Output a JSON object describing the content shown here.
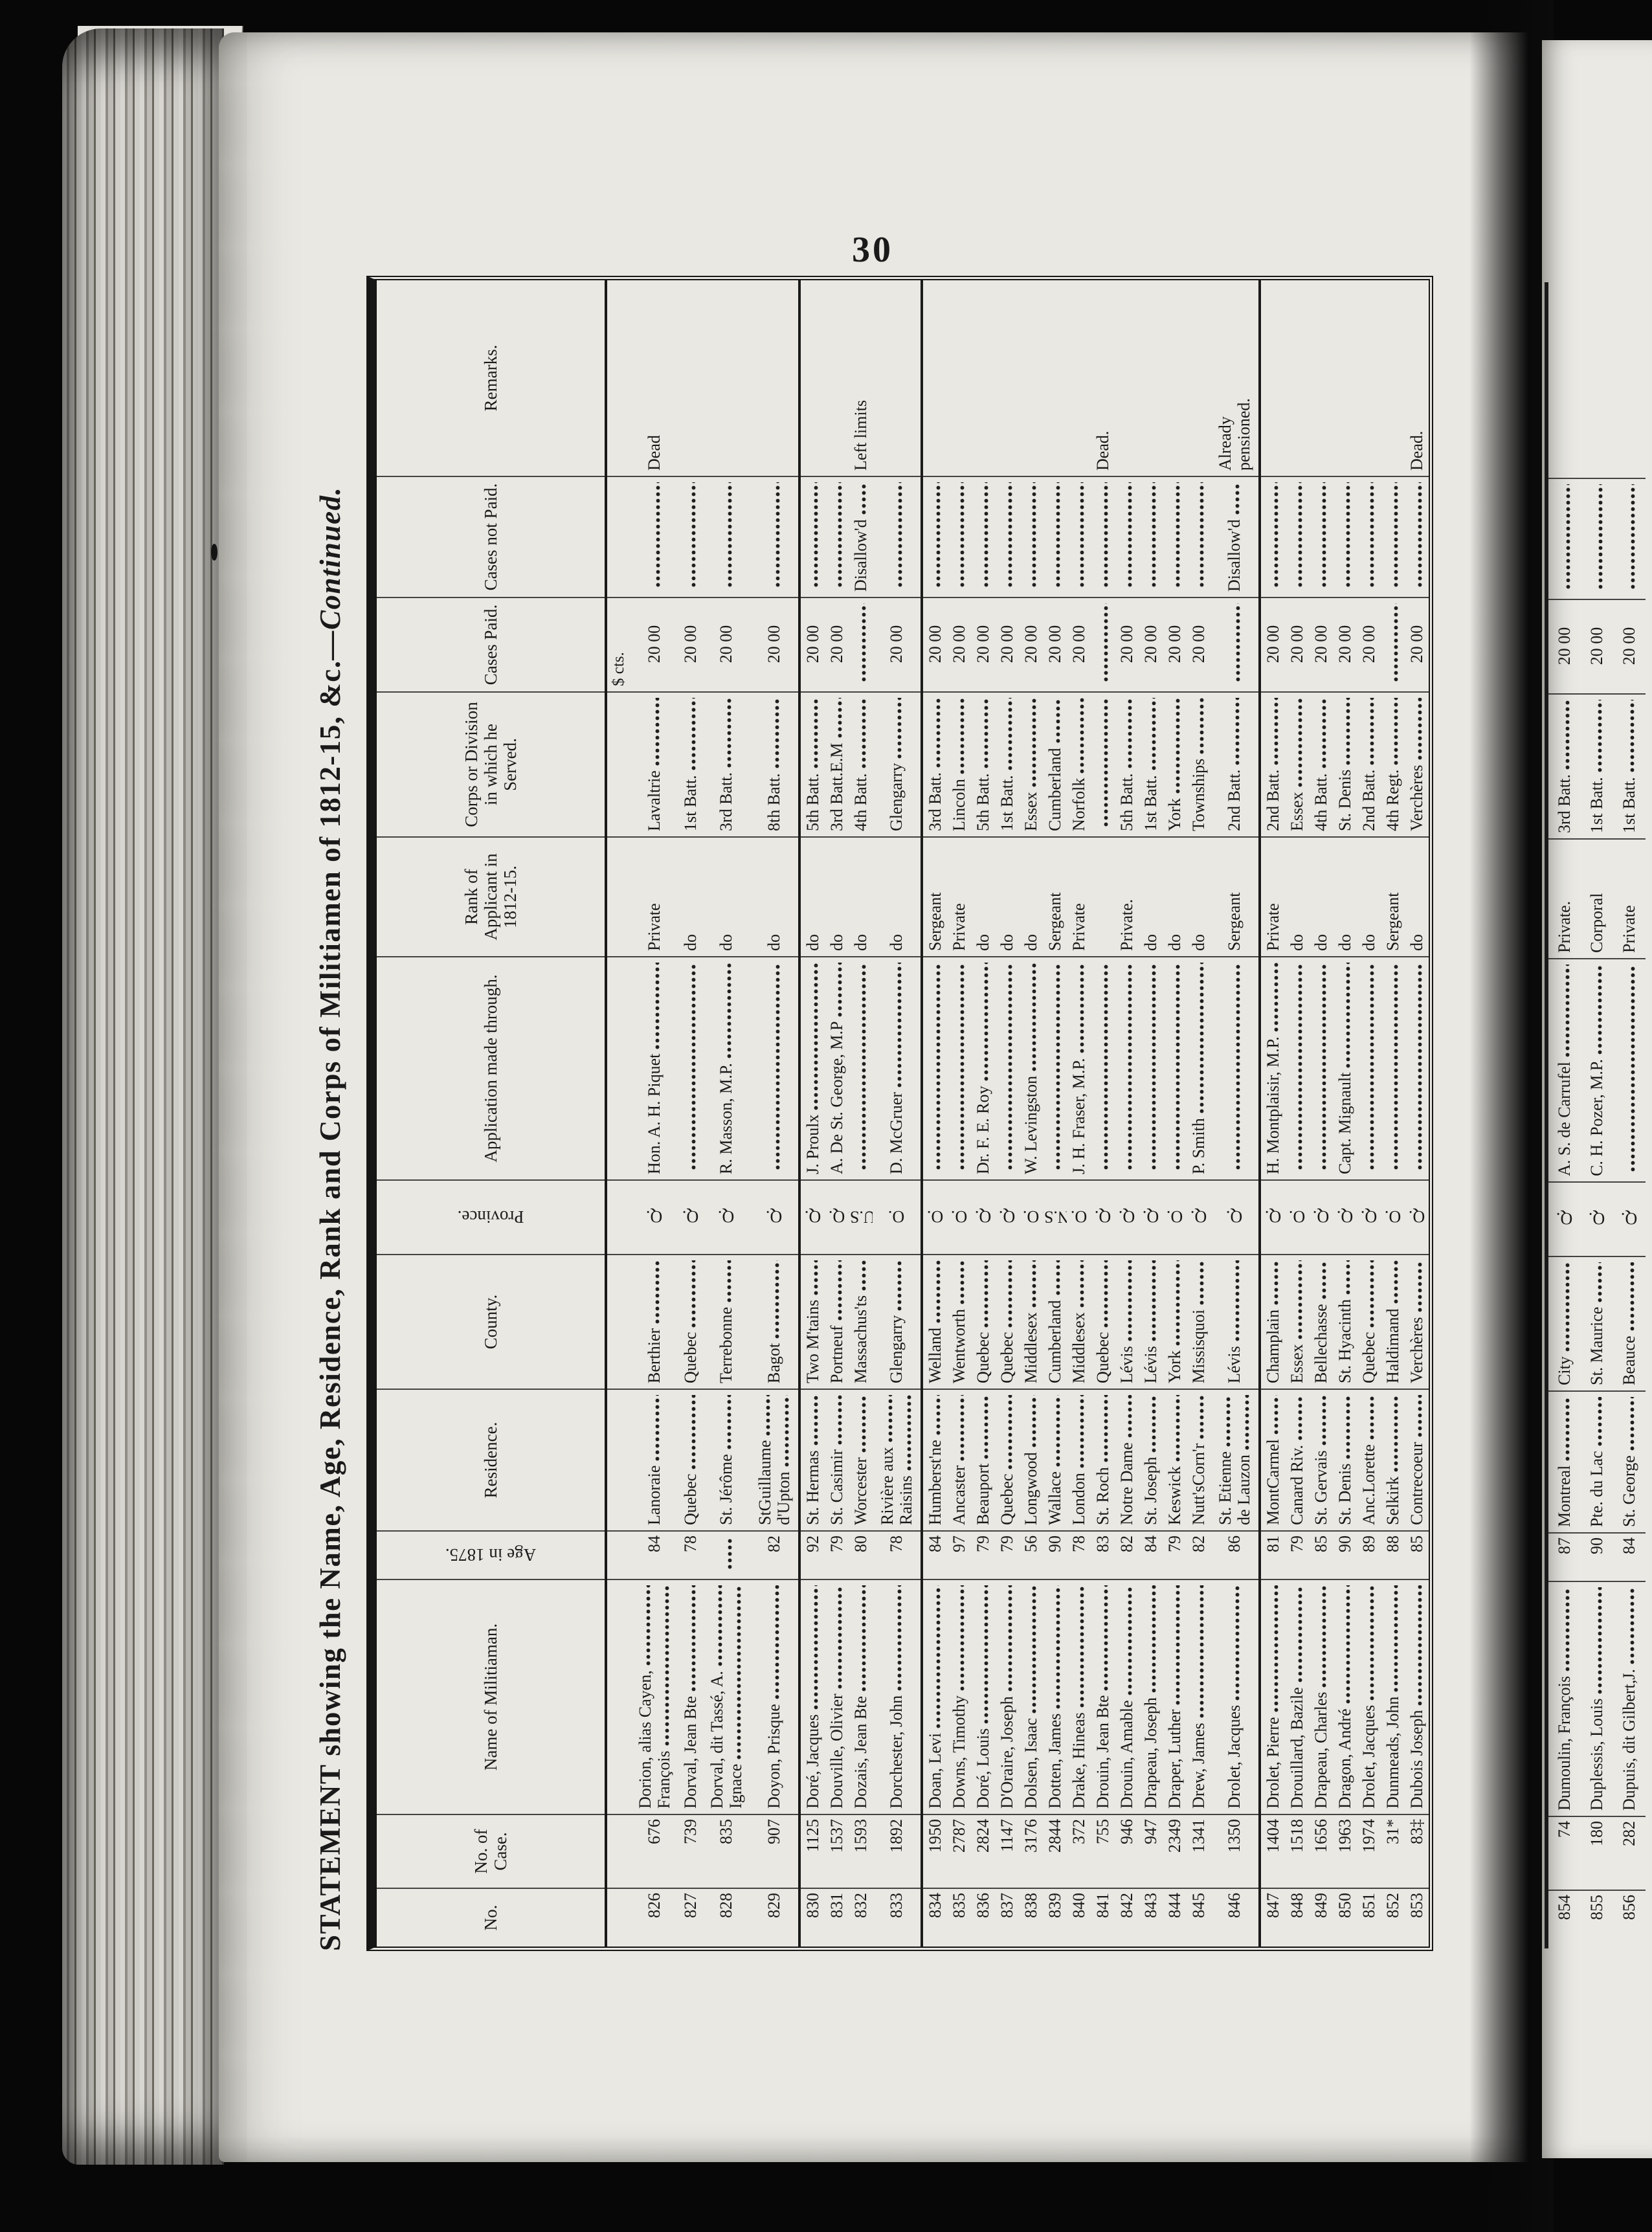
{
  "page": {
    "number": "30",
    "title_main": "STATEMENT showing the Name, Age, Residence, Rank and Corps of Militiamen of 1812-15, &c.",
    "title_continued": "—Continued."
  },
  "table": {
    "headers": {
      "no": "No.",
      "case": "No. of Case.",
      "name": "Name of Militiaman.",
      "age": "Age in 1875.",
      "residence": "Residence.",
      "county": "County.",
      "province": "Province.",
      "application": "Application made through.",
      "rank": "Rank of Applicant in 1812-15.",
      "corps": "Corps or Division in which he Served.",
      "paid": "Cases Paid.",
      "not_paid": "Cases not Paid.",
      "remarks": "Remarks.",
      "paid_units": "$  cts."
    },
    "records": [
      {
        "no": "826",
        "case": "676",
        "name": "Dorion, alias Cayen,",
        "name2": "François",
        "age": "84",
        "residence": "Lanoraie",
        "county": "Berthier",
        "province": "Q.",
        "application": "Hon. A. H. Piquet",
        "rank": "Private",
        "corps": "Lavaltrie",
        "paid": "20 00",
        "not_paid": "",
        "remarks": "Dead"
      },
      {
        "no": "827",
        "case": "739",
        "name": "Dorval, Jean Bte",
        "age": "78",
        "residence": "Quebec",
        "county": "Quebec",
        "province": "Q.",
        "application": "",
        "rank": "do",
        "corps": "1st Batt.",
        "paid": "20 00",
        "not_paid": "",
        "remarks": ""
      },
      {
        "no": "828",
        "case": "835",
        "name": "Dorval, dit Tassé, A.",
        "name2": "Ignace",
        "age": "",
        "residence": "St. Jérôme",
        "county": "Terrebonne",
        "province": "Q.",
        "application": "R. Masson, M.P.",
        "rank": "do",
        "corps": "3rd Batt.",
        "paid": "20 00",
        "not_paid": "",
        "remarks": ""
      },
      {
        "no": "829",
        "case": "907",
        "name": "Doyon, Prisque",
        "age": "82",
        "residence": "StGuillaume",
        "residence2": "d'Upton",
        "county": "Bagot",
        "province": "Q.",
        "application": "",
        "rank": "do",
        "corps": "8th Batt.",
        "paid": "20 00",
        "not_paid": "",
        "remarks": "",
        "rule_after": true
      },
      {
        "no": "830",
        "case": "1125",
        "name": "Doré, Jacques",
        "age": "92",
        "residence": "St. Hermas",
        "county": "Two M'tains",
        "province": "Q.",
        "application": "J. Proulx",
        "rank": "do",
        "corps": "5th Batt.",
        "paid": "20 00",
        "not_paid": "",
        "remarks": ""
      },
      {
        "no": "831",
        "case": "1537",
        "name": "Douville, Olivier",
        "age": "79",
        "residence": "St. Casimir",
        "county": "Portneuf",
        "province": "Q.",
        "application": "A. De St. George, M.P",
        "rank": "do",
        "corps": "3rd Batt.E.M",
        "paid": "20 00",
        "not_paid": "",
        "remarks": ""
      },
      {
        "no": "832",
        "case": "1593",
        "name": "Dozais, Jean Bte",
        "age": "80",
        "residence": "Worcester",
        "county": "Massachus'ts",
        "province": "U.S.",
        "application": "",
        "rank": "do",
        "corps": "4th Batt.",
        "paid": "",
        "not_paid": "Disallow'd",
        "remarks": "Left limits"
      },
      {
        "no": "833",
        "case": "1892",
        "name": "Dorchester, John",
        "age": "78",
        "residence": "Rivière aux",
        "residence2": "Raisins",
        "county": "Glengarry",
        "province": "O.",
        "application": "D. McGruer",
        "rank": "do",
        "corps": "Glengarry",
        "paid": "20 00",
        "not_paid": "",
        "remarks": "",
        "rule_after": true
      },
      {
        "no": "834",
        "case": "1950",
        "name": "Doan, Levi",
        "age": "84",
        "residence": "Humberst'ne",
        "county": "Welland",
        "province": "O.",
        "application": "",
        "rank": "Sergeant",
        "corps": "3rd Batt.",
        "paid": "20 00",
        "not_paid": "",
        "remarks": ""
      },
      {
        "no": "835",
        "case": "2787",
        "name": "Downs, Timothy",
        "age": "97",
        "residence": "Ancaster",
        "county": "Wentworth",
        "province": "O.",
        "application": "",
        "rank": "Private",
        "corps": "Lincoln",
        "paid": "20 00",
        "not_paid": "",
        "remarks": ""
      },
      {
        "no": "836",
        "case": "2824",
        "name": "Doré, Louis",
        "age": "79",
        "residence": "Beauport",
        "county": "Quebec",
        "province": "Q.",
        "application": "Dr. F. E. Roy",
        "rank": "do",
        "corps": "5th Batt.",
        "paid": "20 00",
        "not_paid": "",
        "remarks": ""
      },
      {
        "no": "837",
        "case": "1147",
        "name": "D'Oraire, Joseph",
        "age": "79",
        "residence": "Quebec",
        "county": "Quebec",
        "province": "Q.",
        "application": "",
        "rank": "do",
        "corps": "1st Batt.",
        "paid": "20 00",
        "not_paid": "",
        "remarks": ""
      },
      {
        "no": "838",
        "case": "3176",
        "name": "Dolsen, Isaac",
        "age": "56",
        "residence": "Longwood",
        "county": "Middlesex",
        "province": "O.",
        "application": "W. Levingston",
        "rank": "do",
        "corps": "Essex",
        "paid": "20 00",
        "not_paid": "",
        "remarks": ""
      },
      {
        "no": "839",
        "case": "2844",
        "name": "Dotten, James",
        "age": "90",
        "residence": "Wallace",
        "county": "Cumberland",
        "province": "N.S.",
        "application": "",
        "rank": "Sergeant",
        "corps": "Cumberland",
        "paid": "20 00",
        "not_paid": "",
        "remarks": ""
      },
      {
        "no": "840",
        "case": "372",
        "name": "Drake, Hineas",
        "age": "78",
        "residence": "London",
        "county": "Middlesex",
        "province": "O.",
        "application": "J. H. Fraser, M.P.",
        "rank": "Private",
        "corps": "Norfolk",
        "paid": "20 00",
        "not_paid": "",
        "remarks": ""
      },
      {
        "no": "841",
        "case": "755",
        "name": "Drouin, Jean Bte",
        "age": "83",
        "residence": "St. Roch",
        "county": "Quebec",
        "province": "Q.",
        "application": "",
        "rank": "",
        "corps": "",
        "paid": "",
        "not_paid": "",
        "remarks": "Dead."
      },
      {
        "no": "842",
        "case": "946",
        "name": "Drouin, Amable",
        "age": "82",
        "residence": "Notre Dame",
        "county": "Lévis",
        "province": "Q.",
        "application": "",
        "rank": "Private.",
        "corps": "5th Batt.",
        "paid": "20 00",
        "not_paid": "",
        "remarks": ""
      },
      {
        "no": "843",
        "case": "947",
        "name": "Drapeau, Joseph",
        "age": "84",
        "residence": "St. Joseph",
        "county": "Lévis",
        "province": "Q.",
        "application": "",
        "rank": "do",
        "corps": "1st Batt.",
        "paid": "20 00",
        "not_paid": "",
        "remarks": ""
      },
      {
        "no": "844",
        "case": "2349",
        "name": "Draper, Luther",
        "age": "79",
        "residence": "Keswick",
        "county": "York",
        "province": "O.",
        "application": "",
        "rank": "do",
        "corps": "York",
        "paid": "20 00",
        "not_paid": "",
        "remarks": ""
      },
      {
        "no": "845",
        "case": "1341",
        "name": "Drew, James",
        "age": "82",
        "residence": "Nutt'sCorn'r",
        "county": "Missisquoi",
        "province": "Q.",
        "application": "P. Smith",
        "rank": "do",
        "corps": "Townships",
        "paid": "20 00",
        "not_paid": "",
        "remarks": ""
      },
      {
        "no": "846",
        "case": "1350",
        "name": "Drolet, Jacques",
        "age": "86",
        "residence": "St. Etienne",
        "residence2": "de Lauzon",
        "county": "Lévis",
        "province": "Q.",
        "application": "",
        "rank": "Sergeant",
        "corps": "2nd Batt.",
        "paid": "",
        "not_paid": "Disallow'd",
        "remarks": "Already",
        "remarks2": "pensioned.",
        "rule_after": true
      },
      {
        "no": "847",
        "case": "1404",
        "name": "Drolet, Pierre",
        "age": "81",
        "residence": "MontCarmel",
        "county": "Champlain",
        "province": "Q.",
        "application": "H. Montplaisir, M.P.",
        "rank": "Private",
        "corps": "2nd Batt.",
        "paid": "20 00",
        "not_paid": "",
        "remarks": ""
      },
      {
        "no": "848",
        "case": "1518",
        "name": "Drouillard, Bazile",
        "age": "79",
        "residence": "Canard Riv.",
        "county": "Essex",
        "province": "O.",
        "application": "",
        "rank": "do",
        "corps": "Essex",
        "paid": "20 00",
        "not_paid": "",
        "remarks": ""
      },
      {
        "no": "849",
        "case": "1656",
        "name": "Drapeau, Charles",
        "age": "85",
        "residence": "St. Gervais",
        "county": "Bellechasse",
        "province": "Q.",
        "application": "",
        "rank": "do",
        "corps": "4th Batt.",
        "paid": "20 00",
        "not_paid": "",
        "remarks": ""
      },
      {
        "no": "850",
        "case": "1963",
        "name": "Dragon, André",
        "age": "90",
        "residence": "St. Denis",
        "county": "St. Hyacinth",
        "province": "Q.",
        "application": "Capt. Mignault",
        "rank": "do",
        "corps": "St. Denis",
        "paid": "20 00",
        "not_paid": "",
        "remarks": ""
      },
      {
        "no": "851",
        "case": "1974",
        "name": "Drolet, Jacques",
        "age": "89",
        "residence": "Anc.Lorette",
        "county": "Quebec",
        "province": "Q.",
        "application": "",
        "rank": "do",
        "corps": "2nd Batt.",
        "paid": "20 00",
        "not_paid": "",
        "remarks": ""
      },
      {
        "no": "852",
        "case": "31*",
        "name": "Dunmeads, John",
        "age": "88",
        "residence": "Selkirk",
        "county": "Haldimand",
        "province": "O.",
        "application": "",
        "rank": "Sergeant",
        "corps": "4th Regt.",
        "paid": "",
        "not_paid": "",
        "remarks": ""
      },
      {
        "no": "853",
        "case": "83‡",
        "name": "Dubois Joseph",
        "age": "85",
        "residence": "Contrecoeur",
        "county": "Verchères",
        "province": "Q.",
        "application": "",
        "rank": "do",
        "corps": "Verchères",
        "paid": "20 00",
        "not_paid": "",
        "remarks": "Dead."
      }
    ]
  },
  "next_page": {
    "records": [
      {
        "no": "854",
        "case": "74",
        "name": "Dumoulin, François",
        "age": "87",
        "residence": "Montreal",
        "county": "City",
        "province": "Q.",
        "application": "A. S. de Carrufel",
        "rank": "Private.",
        "corps": "3rd Batt.",
        "paid": "20 00",
        "not_paid": "",
        "remarks": ""
      },
      {
        "no": "855",
        "case": "180",
        "name": "Duplessis, Louis",
        "age": "90",
        "residence": "Pte. du Lac",
        "county": "St. Maurice",
        "province": "Q.",
        "application": "C. H. Pozer, M.P.",
        "rank": "Corporal",
        "corps": "1st Batt.",
        "paid": "20 00",
        "not_paid": "",
        "remarks": ""
      },
      {
        "no": "856",
        "case": "282",
        "name": "Dupuis, dit Gilbert,J.",
        "age": "84",
        "residence": "St. George",
        "county": "Beauce",
        "province": "Q.",
        "application": "",
        "rank": "Private",
        "corps": "1st Batt.",
        "paid": "20 00",
        "not_paid": "",
        "remarks": ""
      }
    ]
  }
}
